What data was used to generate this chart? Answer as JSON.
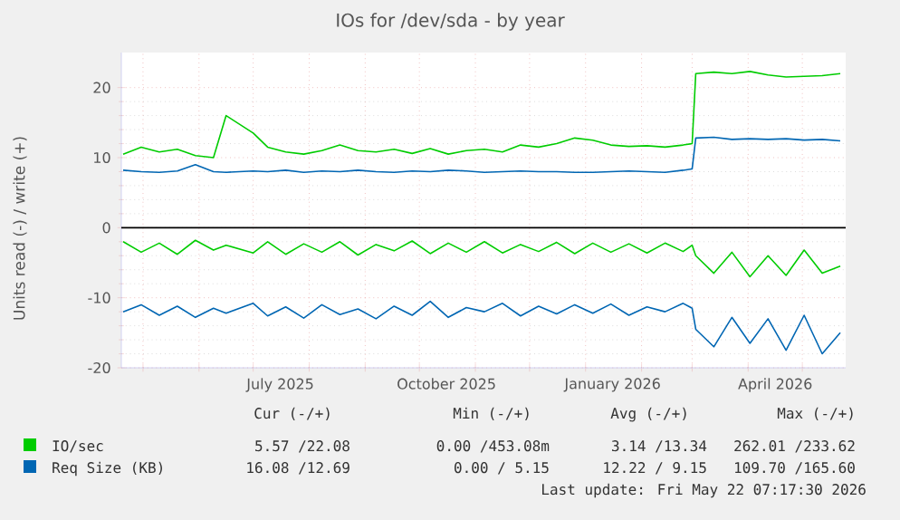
{
  "chart_data": {
    "type": "line",
    "title": "IOs for /dev/sda - by year",
    "ylabel": "Units read (-) / write (+)",
    "x": [
      "2025-04-20",
      "2025-04-30",
      "2025-05-10",
      "2025-05-20",
      "2025-05-30",
      "2025-06-09",
      "2025-06-16",
      "2025-07-01",
      "2025-07-09",
      "2025-07-19",
      "2025-07-29",
      "2025-08-08",
      "2025-08-18",
      "2025-08-28",
      "2025-09-07",
      "2025-09-17",
      "2025-09-27",
      "2025-10-07",
      "2025-10-17",
      "2025-10-27",
      "2025-11-06",
      "2025-11-16",
      "2025-11-26",
      "2025-12-06",
      "2025-12-16",
      "2025-12-26",
      "2026-01-05",
      "2026-01-15",
      "2026-01-25",
      "2026-02-04",
      "2026-02-14",
      "2026-02-24",
      "2026-03-01",
      "2026-03-03",
      "2026-03-13",
      "2026-03-23",
      "2026-04-02",
      "2026-04-12",
      "2026-04-22",
      "2026-05-02",
      "2026-05-12",
      "2026-05-22"
    ],
    "series": [
      {
        "name": "IO/sec",
        "color": "#00cc00",
        "values": [
          10.5,
          11.5,
          10.8,
          11.2,
          10.3,
          10.0,
          16.0,
          13.5,
          11.5,
          10.8,
          10.5,
          11.0,
          11.8,
          11.0,
          10.8,
          11.2,
          10.6,
          11.3,
          10.5,
          11.0,
          11.2,
          10.8,
          11.8,
          11.5,
          12.0,
          12.8,
          12.5,
          11.8,
          11.6,
          11.7,
          11.5,
          11.8,
          12.0,
          22.0,
          22.2,
          22.0,
          22.3,
          21.8,
          21.5,
          21.6,
          21.7,
          22.0
        ]
      },
      {
        "color": "#00cc00",
        "values": [
          -2.0,
          -3.5,
          -2.2,
          -3.8,
          -1.8,
          -3.2,
          -2.5,
          -3.6,
          -2.0,
          -3.8,
          -2.3,
          -3.5,
          -2.0,
          -3.9,
          -2.4,
          -3.3,
          -1.9,
          -3.7,
          -2.2,
          -3.5,
          -2.0,
          -3.6,
          -2.4,
          -3.4,
          -2.1,
          -3.7,
          -2.2,
          -3.5,
          -2.3,
          -3.6,
          -2.2,
          -3.4,
          -2.5,
          -4.0,
          -6.5,
          -3.5,
          -7.0,
          -4.0,
          -6.8,
          -3.2,
          -6.5,
          -5.5
        ]
      },
      {
        "name": "Req Size (KB)",
        "color": "#0066b3",
        "values": [
          8.2,
          8.0,
          7.9,
          8.1,
          9.0,
          8.0,
          7.9,
          8.1,
          8.0,
          8.2,
          7.9,
          8.1,
          8.0,
          8.2,
          8.0,
          7.9,
          8.1,
          8.0,
          8.2,
          8.1,
          7.9,
          8.0,
          8.1,
          8.0,
          8.0,
          7.9,
          7.9,
          8.0,
          8.1,
          8.0,
          7.9,
          8.2,
          8.4,
          12.8,
          12.9,
          12.6,
          12.7,
          12.6,
          12.7,
          12.5,
          12.6,
          12.4
        ]
      },
      {
        "color": "#0066b3",
        "values": [
          -12.0,
          -11.0,
          -12.5,
          -11.2,
          -12.8,
          -11.5,
          -12.2,
          -10.8,
          -12.6,
          -11.3,
          -12.9,
          -11.0,
          -12.4,
          -11.6,
          -13.0,
          -11.2,
          -12.5,
          -10.5,
          -12.8,
          -11.4,
          -12.0,
          -10.8,
          -12.6,
          -11.2,
          -12.3,
          -11.0,
          -12.2,
          -10.9,
          -12.5,
          -11.3,
          -12.0,
          -10.8,
          -11.5,
          -14.5,
          -17.0,
          -12.8,
          -16.5,
          -13.0,
          -17.5,
          -12.5,
          -18.0,
          -15.0
        ]
      }
    ],
    "xlim": [
      "2025-04-19",
      "2026-05-25"
    ],
    "xticks": [
      {
        "value": "2025-05-01",
        "label": null
      },
      {
        "value": "2025-06-01",
        "label": null
      },
      {
        "value": "2025-07-01",
        "label": null
      },
      {
        "value": "2025-07-16",
        "label": "July 2025"
      },
      {
        "value": "2025-08-01",
        "label": null
      },
      {
        "value": "2025-09-01",
        "label": null
      },
      {
        "value": "2025-10-01",
        "label": null
      },
      {
        "value": "2025-10-16",
        "label": "October 2025"
      },
      {
        "value": "2025-11-01",
        "label": null
      },
      {
        "value": "2025-12-01",
        "label": null
      },
      {
        "value": "2026-01-01",
        "label": null
      },
      {
        "value": "2026-01-16",
        "label": "January 2026"
      },
      {
        "value": "2026-02-01",
        "label": null
      },
      {
        "value": "2026-03-01",
        "label": null
      },
      {
        "value": "2026-04-01",
        "label": null
      },
      {
        "value": "2026-04-16",
        "label": "April 2026"
      },
      {
        "value": "2026-05-01",
        "label": null
      }
    ],
    "ylim": [
      -20,
      25
    ],
    "yticks": [
      -20,
      -10,
      0,
      10,
      20
    ],
    "ref_lines": [
      {
        "axis": "y",
        "value": 0,
        "color": "#000000"
      }
    ],
    "grid": true,
    "legend": "bottom",
    "annotations": [
      "Cur (-/+)",
      "Min (-/+)",
      "Avg (-/+)",
      "Max (-/+)",
      "5.57 /22.08",
      "0.00 /453.08m",
      "3.14 /13.34",
      "262.01 /233.62",
      "16.08 /12.69",
      "0.00 / 5.15",
      "12.22 / 9.15",
      "109.70 /165.60",
      "Last update: Fri May 22 07:17:30 2026"
    ]
  }
}
